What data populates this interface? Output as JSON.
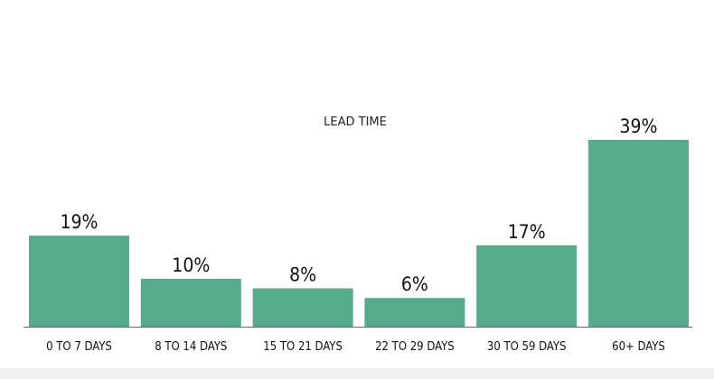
{
  "chart_data": {
    "type": "bar",
    "title": "LEAD TIME",
    "categories": [
      "0 TO 7 DAYS",
      "8 TO 14 DAYS",
      "15 TO 21 DAYS",
      "22 TO 29 DAYS",
      "30 TO 59 DAYS",
      "60+ DAYS"
    ],
    "values": [
      19,
      10,
      8,
      6,
      17,
      39
    ],
    "value_labels": [
      "19%",
      "10%",
      "8%",
      "6%",
      "17%",
      "39%"
    ],
    "ylim": [
      0,
      39
    ],
    "grid": false,
    "legend": "none",
    "bar_color": "#55ab8a",
    "axis_color": "#666666"
  }
}
